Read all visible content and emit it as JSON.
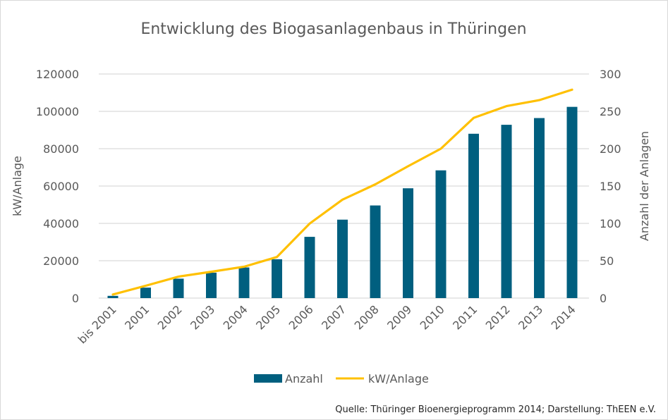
{
  "chart_data": {
    "type": "bar+line",
    "title": "Entwicklung des Biogasanlagenbaus in Thüringen",
    "categories": [
      "bis 2001",
      "2001",
      "2002",
      "2003",
      "2004",
      "2005",
      "2006",
      "2007",
      "2008",
      "2009",
      "2010",
      "2011",
      "2012",
      "2013",
      "2014"
    ],
    "series": [
      {
        "name": "Anzahl",
        "type": "bar",
        "axis": "right",
        "color": "#005f7f",
        "values": [
          3,
          14,
          26,
          34,
          41,
          52,
          82,
          105,
          124,
          147,
          171,
          220,
          232,
          241,
          256
        ]
      },
      {
        "name": "kW/Anlage",
        "type": "line",
        "axis": "left",
        "color": "#ffc000",
        "values": [
          1900,
          6600,
          11500,
          14100,
          16800,
          22000,
          39900,
          52700,
          60900,
          70600,
          80000,
          96500,
          102800,
          106000,
          111600
        ]
      }
    ],
    "ylabel": "kW/Anlage",
    "y2label": "Anzahl der Anlagen",
    "ylim": [
      0,
      120000
    ],
    "y2lim": [
      0,
      300
    ],
    "yticks": [
      "0",
      "20000",
      "40000",
      "60000",
      "80000",
      "100000",
      "120000"
    ],
    "y2ticks": [
      "0",
      "50",
      "100",
      "150",
      "200",
      "250",
      "300"
    ],
    "grid": true,
    "legend": "bottom",
    "source": "Quelle: Thüringer Bioenergieprogramm 2014; Darstellung: ThEEN e.V."
  }
}
